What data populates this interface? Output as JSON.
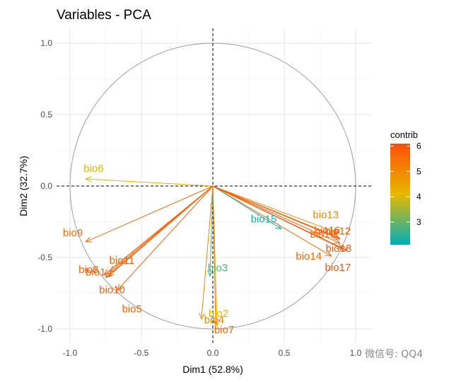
{
  "chart_data": {
    "type": "scatter",
    "subtype": "pca-variables-correlation-circle",
    "title": "Variables - PCA",
    "xlabel": "Dim1 (52.8%)",
    "ylabel": "Dim2 (32.7%)",
    "xlim": [
      -1.0,
      1.0
    ],
    "ylim": [
      -1.0,
      1.0
    ],
    "x_ticks": [
      "-1.0",
      "-0.5",
      "0.0",
      "0.5",
      "1.0"
    ],
    "y_ticks": [
      "1.0",
      "0.5",
      "0.0",
      "-0.5",
      "-1.0"
    ],
    "grid": true,
    "circle": true,
    "legend": {
      "title": "contrib",
      "position": "right",
      "ticks": [
        "6",
        "5",
        "4",
        "3"
      ],
      "range": [
        2.1,
        6.1
      ],
      "colors": [
        "#00AFBB",
        "#E7B800",
        "#FC4E07"
      ]
    },
    "variables": [
      {
        "name": "bio1",
        "x": -0.73,
        "y": -0.63,
        "contrib": 5.6
      },
      {
        "name": "bio2",
        "x": 0.03,
        "y": -0.98,
        "contrib": 4.2
      },
      {
        "name": "bio3",
        "x": -0.02,
        "y": -0.63,
        "contrib": 2.8
      },
      {
        "name": "bio4",
        "x": -0.08,
        "y": -0.93,
        "contrib": 5.0
      },
      {
        "name": "bio5",
        "x": -0.67,
        "y": -0.73,
        "contrib": 5.7
      },
      {
        "name": "bio6",
        "x": -0.89,
        "y": 0.05,
        "contrib": 4.2
      },
      {
        "name": "bio7",
        "x": 0.02,
        "y": -0.97,
        "contrib": 5.5
      },
      {
        "name": "bio8",
        "x": -0.76,
        "y": -0.62,
        "contrib": 5.8
      },
      {
        "name": "bio9",
        "x": -0.89,
        "y": -0.39,
        "contrib": 5.6
      },
      {
        "name": "bio10",
        "x": -0.75,
        "y": -0.64,
        "contrib": 5.8
      },
      {
        "name": "bio11",
        "x": -0.72,
        "y": -0.6,
        "contrib": 5.7
      },
      {
        "name": "bio12",
        "x": 0.89,
        "y": -0.37,
        "contrib": 5.9
      },
      {
        "name": "bio13",
        "x": 0.88,
        "y": -0.33,
        "contrib": 5.0
      },
      {
        "name": "bio14",
        "x": 0.83,
        "y": -0.49,
        "contrib": 5.6
      },
      {
        "name": "bio15",
        "x": 0.48,
        "y": -0.3,
        "contrib": 2.3
      },
      {
        "name": "bio16",
        "x": 0.88,
        "y": -0.36,
        "contrib": 5.7
      },
      {
        "name": "bio17",
        "x": 0.94,
        "y": -0.45,
        "contrib": 6.0
      },
      {
        "name": "bio18",
        "x": 0.91,
        "y": -0.44,
        "contrib": 5.9
      },
      {
        "name": "bio19",
        "x": 0.89,
        "y": -0.4,
        "contrib": 5.7
      }
    ]
  },
  "watermark": "微信号: QQ4"
}
